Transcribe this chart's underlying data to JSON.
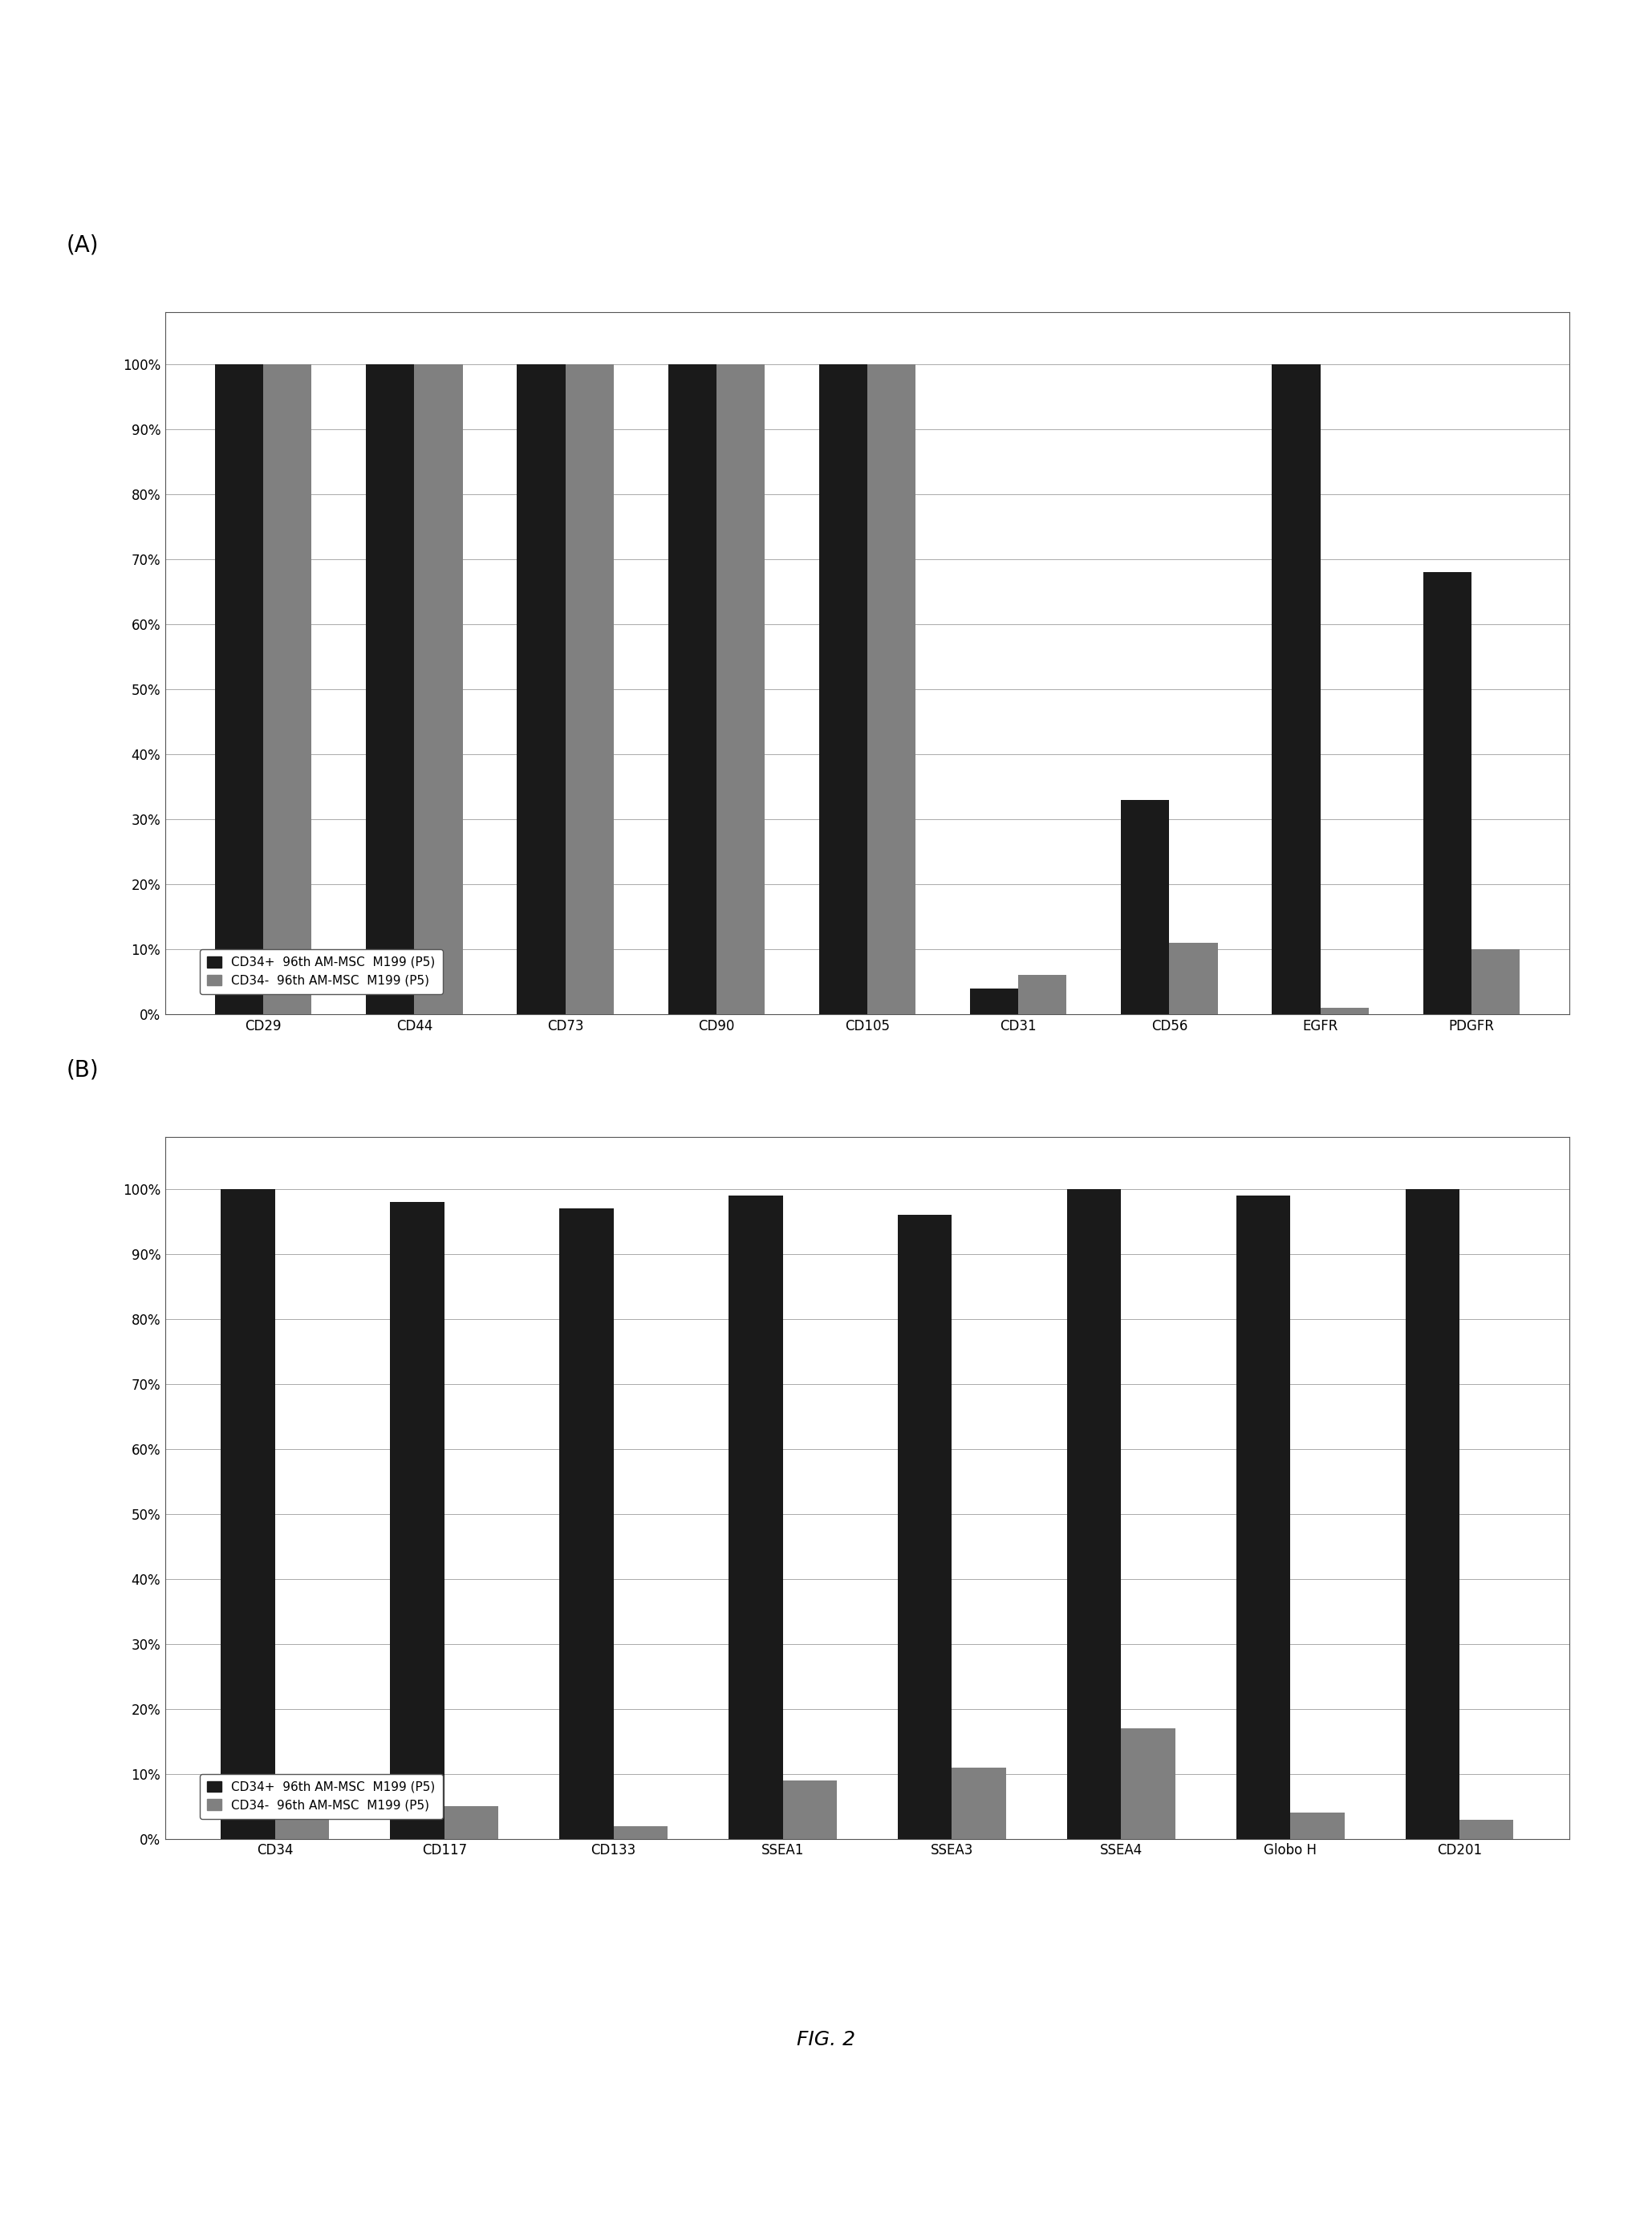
{
  "panel_A": {
    "categories": [
      "CD29",
      "CD44",
      "CD73",
      "CD90",
      "CD105",
      "CD31",
      "CD56",
      "EGFR",
      "PDGFR"
    ],
    "series1_label": "CD34+  96th AM-MSC  M199 (P5)",
    "series2_label": "CD34-  96th AM-MSC  M199 (P5)",
    "series1_values": [
      100,
      100,
      100,
      100,
      100,
      4,
      33,
      100,
      68
    ],
    "series2_values": [
      100,
      100,
      100,
      100,
      100,
      6,
      11,
      1,
      10
    ],
    "series1_color": "#1a1a1a",
    "series2_color": "#808080",
    "ylabel_ticks": [
      "0%",
      "10%",
      "20%",
      "30%",
      "40%",
      "50%",
      "60%",
      "70%",
      "80%",
      "90%",
      "100%"
    ],
    "ylim": [
      0,
      108
    ],
    "yticks": [
      0,
      10,
      20,
      30,
      40,
      50,
      60,
      70,
      80,
      90,
      100
    ]
  },
  "panel_B": {
    "categories": [
      "CD34",
      "CD117",
      "CD133",
      "SSEA1",
      "SSEA3",
      "SSEA4",
      "Globo H",
      "CD201"
    ],
    "series1_label": "CD34+  96th AM-MSC  M199 (P5)",
    "series2_label": "CD34-  96th AM-MSC  M199 (P5)",
    "series1_values": [
      100,
      98,
      97,
      99,
      96,
      100,
      99,
      100
    ],
    "series2_values": [
      3,
      5,
      2,
      9,
      11,
      17,
      4,
      3
    ],
    "series1_color": "#1a1a1a",
    "series2_color": "#808080",
    "ylabel_ticks": [
      "0%",
      "10%",
      "20%",
      "30%",
      "40%",
      "50%",
      "60%",
      "70%",
      "80%",
      "90%",
      "100%"
    ],
    "ylim": [
      0,
      108
    ],
    "yticks": [
      0,
      10,
      20,
      30,
      40,
      50,
      60,
      70,
      80,
      90,
      100
    ]
  },
  "fig_label": "FIG. 2",
  "background_color": "#ffffff",
  "panel_label_fontsize": 20,
  "tick_fontsize": 12,
  "legend_fontsize": 11,
  "fig_label_fontsize": 18
}
